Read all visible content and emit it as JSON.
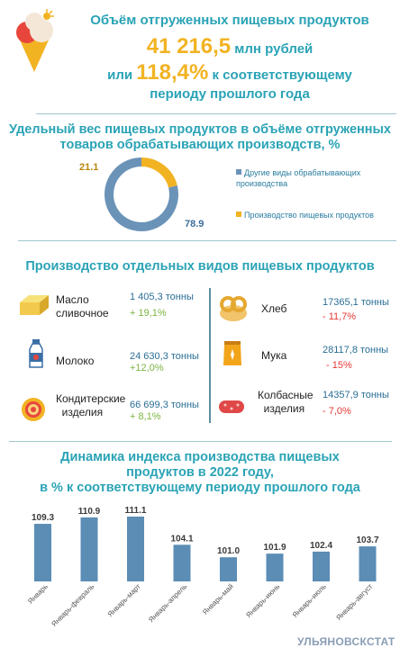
{
  "header": {
    "line1": "Объём отгруженных пищевых продуктов",
    "line2_big": "41 216,5",
    "line2_small": " млн рублей",
    "line3_pre": "или ",
    "line3_big": "118,4%",
    "line3_post": " к соответствующему",
    "line4": "периоду прошлого года"
  },
  "share": {
    "title_l1": "Удельный вес пищевых продуктов в объёме отгруженных",
    "title_l2": "товаров обрабатывающих производств, %",
    "colors": {
      "other": "#6b93b8",
      "food": "#f2b323"
    },
    "legend_other_l1": "Другие виды обрабатывающих",
    "legend_other_l2": "производства",
    "legend_food": "Производство пищевых продуктов"
  },
  "products": {
    "title": "Производство отдельных видов пищевых продуктов",
    "items": [
      {
        "name_l1": "Масло",
        "name_l2": "сливочное",
        "value": "1 405,3  тонны",
        "change": "+ 19,1%",
        "icon": "butter-icon"
      },
      {
        "name_l1": "Молоко",
        "name_l2": "",
        "value": "24 630,3 тонны",
        "change": "+12,0%",
        "icon": "milk-icon"
      },
      {
        "name_l1": "Кондитерские",
        "name_l2": "изделия",
        "value": "66 699,3 тонны",
        "change": "+ 8,1%",
        "icon": "roll-cake-icon"
      },
      {
        "name_l1": "Хлеб",
        "name_l2": "",
        "value": "17365,1 тонны",
        "change": "- 11,7%",
        "icon": "bread-icon"
      },
      {
        "name_l1": "Мука",
        "name_l2": "",
        "value": "28117,8 тонны",
        "change": "- 15%",
        "icon": "flour-bag-icon"
      },
      {
        "name_l1": "Колбасные",
        "name_l2": "изделия",
        "value": "14357,9 тонны",
        "change": "- 7,0%",
        "icon": "sausage-icon"
      }
    ]
  },
  "dynamics": {
    "title_l1": "Динамика индекса производства пищевых",
    "title_l2": "продуктов в 2022 году,",
    "title_l3": "в % к соответствующему периоду прошлого года"
  },
  "footer": {
    "org": "УЛЬЯНОВСКСТАТ"
  },
  "chart_data": [
    {
      "type": "pie",
      "categories": [
        "Другие виды обрабатывающих производства",
        "Производство пищевых продуктов"
      ],
      "values": [
        78.9,
        21.1
      ],
      "labels": [
        "78.9",
        "21.1"
      ]
    },
    {
      "type": "bar",
      "categories": [
        "Январь",
        "Январь-февраль",
        "Январь-март",
        "Январь-апрель",
        "Январь-май",
        "Январь-июнь",
        "Январь-июль",
        "Январь-август"
      ],
      "values": [
        109.3,
        110.9,
        111.1,
        104.1,
        101.0,
        101.9,
        102.4,
        103.7
      ],
      "labels": [
        "109.3",
        "110.9",
        "111.1",
        "104.1",
        "101.0",
        "101.9",
        "102.4",
        "103.7"
      ]
    }
  ]
}
